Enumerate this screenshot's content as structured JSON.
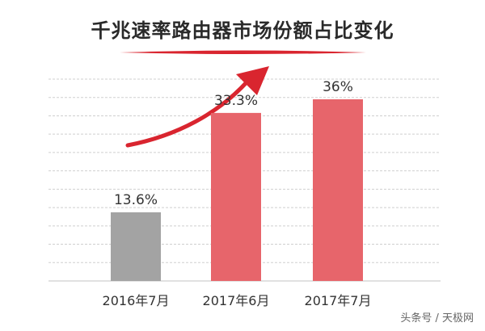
{
  "title": "千兆速率路由器市场份额占比变化",
  "watermark": "头条号 / 天极网",
  "colors": {
    "title_underline": "#d9252f",
    "arrow": "#d9252f",
    "bar_gray": "#a3a3a3",
    "bar_red": "#e7656b",
    "gridline": "#cfcfcf",
    "text": "#333333"
  },
  "chart_data": {
    "type": "bar",
    "title": "千兆速率路由器市场份额占比变化",
    "categories": [
      "2016年7月",
      "2017年6月",
      "2017年7月"
    ],
    "values": [
      13.6,
      33.3,
      36
    ],
    "data_labels": [
      "13.6%",
      "33.3%",
      "36%"
    ],
    "bar_colors": [
      "#a3a3a3",
      "#e7656b",
      "#e7656b"
    ],
    "unit": "%",
    "xlabel": "",
    "ylabel": "",
    "ylim": [
      0,
      40
    ],
    "grid": true,
    "legend": "none",
    "annotation": "rising-arrow"
  }
}
